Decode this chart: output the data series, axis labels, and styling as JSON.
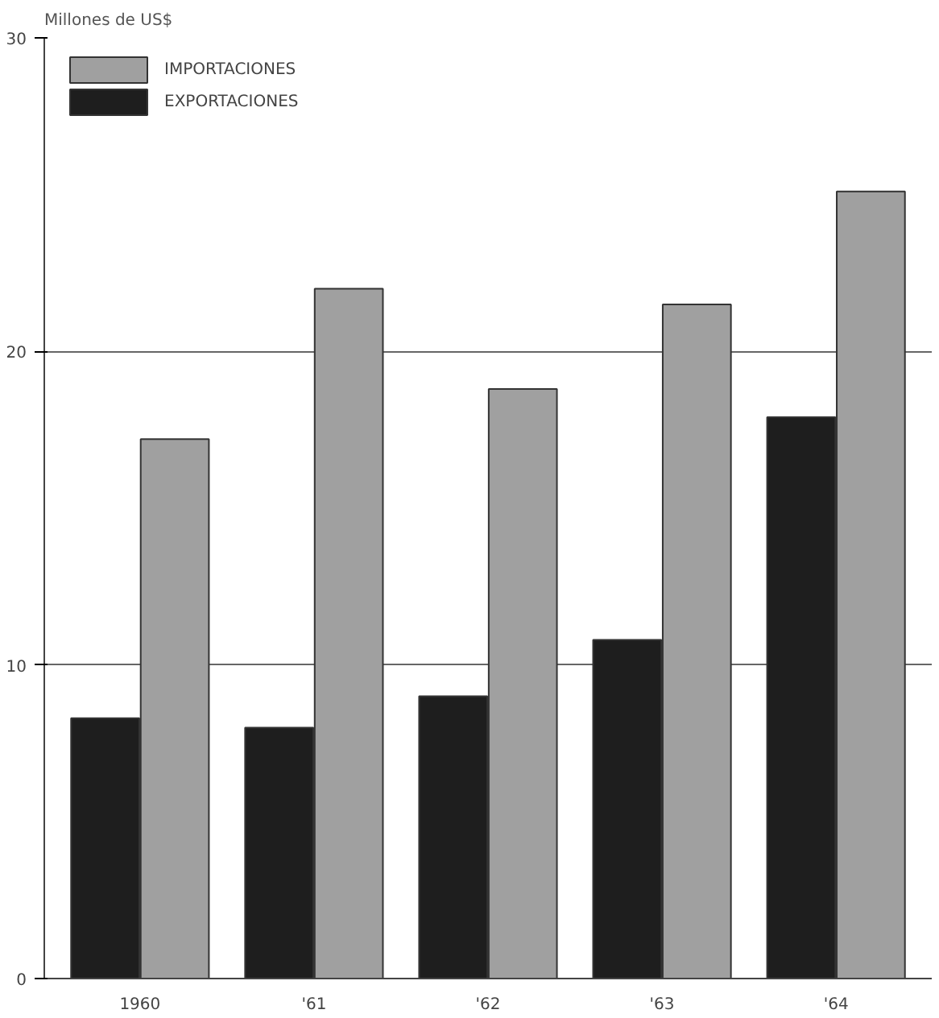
{
  "chart_data": {
    "type": "bar",
    "ylabel": "Millones de US$",
    "categories": [
      "1960",
      "'61",
      "'62",
      "'63",
      "'64"
    ],
    "series": [
      {
        "name": "EXPORTACIONES",
        "color": "#1e1e1e",
        "values": [
          8.3,
          8.0,
          9.0,
          10.8,
          17.9
        ]
      },
      {
        "name": "IMPORTACIONES",
        "color": "#a0a0a0",
        "values": [
          17.2,
          22.0,
          18.8,
          21.5,
          25.1
        ]
      }
    ],
    "ylim": [
      0,
      30
    ],
    "yticks": [
      0,
      10,
      20,
      30
    ],
    "grid": "y",
    "legend": "top left"
  }
}
